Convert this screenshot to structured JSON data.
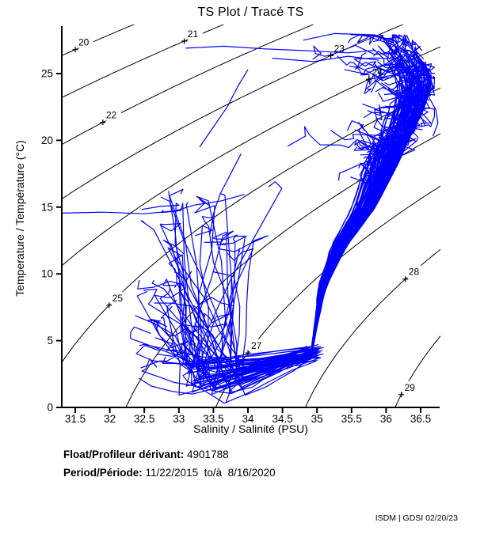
{
  "figure": {
    "title": "TS Plot / Tracé TS",
    "xlabel": "Salinity / Salinité (PSU)",
    "ylabel": "Temperature / Température (°C)",
    "float_label": "Float/Profileur dérivant:",
    "float_value": " 4901788",
    "period_label": "Period/Période:",
    "period_value": " 11/22/2015  to/à  8/16/2020",
    "credit": "ISDM | GDSI 02/20/23"
  },
  "chart_data": {
    "type": "line",
    "title": "TS Plot / Tracé TS",
    "xlabel": "Salinity / Salinité (PSU)",
    "ylabel": "Temperature / Température (°C)",
    "xlim": [
      31.305,
      36.775
    ],
    "ylim": [
      0,
      28.5
    ],
    "x_ticks": [
      31.5,
      32,
      32.5,
      33,
      33.5,
      34,
      34.5,
      35,
      35.5,
      36,
      36.5
    ],
    "y_ticks": [
      0,
      5,
      10,
      15,
      20,
      25
    ],
    "grid": false,
    "legend": "none",
    "series_color": "#0000FF",
    "contour_color": "#000000",
    "contours": {
      "variable": "sigma-t isopycnals",
      "levels": [
        20,
        21,
        22,
        23,
        24,
        25,
        26,
        27,
        28,
        29
      ],
      "labels": [
        {
          "level": 20,
          "at_salinity": 31.5
        },
        {
          "level": 21,
          "at_salinity": 33.08
        },
        {
          "level": 22,
          "at_salinity": 31.9
        },
        {
          "level": 23,
          "at_salinity": 35.2
        },
        {
          "level": 24,
          "at_salinity": 35.75
        },
        {
          "level": 25,
          "at_salinity": 31.99
        },
        {
          "level": 27,
          "at_salinity": 34.0
        },
        {
          "level": 28,
          "at_salinity": 36.28
        },
        {
          "level": 29,
          "at_salinity": 36.22
        }
      ],
      "eos": {
        "sigma_ref": 28.13,
        "s_ref": 35,
        "s_coef": 0.77,
        "t_coef1": 0.0675,
        "t_coef2": 0.00505
      }
    },
    "envelope": {
      "deep_convergence_point": {
        "salinity": 34.95,
        "temperature": 3.8
      },
      "salinity_range": [
        32.3,
        36.75
      ],
      "temperature_range": [
        0.3,
        28.05
      ],
      "spine_S_of_T": [
        [
          3.5,
          34.91
        ],
        [
          6,
          35.0
        ],
        [
          9,
          35.13
        ],
        [
          12,
          35.42
        ],
        [
          15,
          35.85
        ],
        [
          18,
          36.15
        ],
        [
          20,
          36.33
        ],
        [
          22,
          36.52
        ],
        [
          23.5,
          36.63
        ],
        [
          24.5,
          36.67
        ],
        [
          25.5,
          36.6
        ],
        [
          27,
          36.35
        ],
        [
          28.2,
          36.0
        ]
      ]
    },
    "procedural": {
      "seed": 7,
      "subtropical_profiles": 132,
      "subpolar_profiles": 58
    },
    "outlier_traces": [
      [
        [
          31.31,
          14.55
        ],
        [
          31.9,
          14.62
        ],
        [
          32.5,
          14.5
        ],
        [
          32.95,
          14.72
        ],
        [
          33.22,
          15.15
        ],
        [
          33.6,
          15.45
        ],
        [
          33.95,
          15.95
        ]
      ],
      [
        [
          33.1,
          26.9
        ],
        [
          33.65,
          27.05
        ],
        [
          34.25,
          26.85
        ],
        [
          34.9,
          26.7
        ],
        [
          35.45,
          26.55
        ],
        [
          35.85,
          26.75
        ]
      ],
      [
        [
          34.8,
          27.5
        ],
        [
          35.25,
          28.0
        ],
        [
          35.8,
          27.9
        ],
        [
          36.15,
          27.4
        ]
      ],
      [
        [
          34.35,
          26.15
        ],
        [
          34.95,
          25.9
        ],
        [
          35.45,
          26.3
        ],
        [
          35.9,
          26.0
        ]
      ],
      [
        [
          32.85,
          16.2
        ],
        [
          32.95,
          13.0
        ],
        [
          33.0,
          10.0
        ],
        [
          33.05,
          7.0
        ],
        [
          33.18,
          4.8
        ],
        [
          33.45,
          3.8
        ],
        [
          34.0,
          3.3
        ],
        [
          34.6,
          3.5
        ],
        [
          34.9,
          3.8
        ]
      ],
      [
        [
          33.68,
          0.35
        ],
        [
          33.75,
          1.3
        ],
        [
          33.95,
          2.2
        ],
        [
          34.3,
          3.0
        ],
        [
          34.65,
          3.45
        ],
        [
          34.92,
          3.8
        ]
      ],
      [
        [
          36.68,
          20.3
        ],
        [
          36.75,
          21.3
        ],
        [
          36.72,
          22.3
        ],
        [
          36.6,
          23.4
        ],
        [
          36.45,
          24.4
        ],
        [
          36.28,
          25.2
        ]
      ],
      [
        [
          32.42,
          2.2
        ],
        [
          32.6,
          1.6
        ],
        [
          32.9,
          1.2
        ],
        [
          33.2,
          1.0
        ],
        [
          33.5,
          1.4
        ],
        [
          33.9,
          2.1
        ],
        [
          34.35,
          2.9
        ],
        [
          34.75,
          3.4
        ],
        [
          34.95,
          3.9
        ]
      ],
      [
        [
          33.3,
          19.5
        ],
        [
          33.5,
          21.0
        ],
        [
          33.7,
          22.5
        ],
        [
          33.85,
          24.0
        ],
        [
          34.0,
          25.3
        ]
      ],
      [
        [
          33.9,
          19.0
        ],
        [
          33.75,
          17.5
        ],
        [
          33.6,
          16.0
        ],
        [
          33.5,
          14.5
        ],
        [
          33.45,
          13.0
        ]
      ]
    ]
  }
}
